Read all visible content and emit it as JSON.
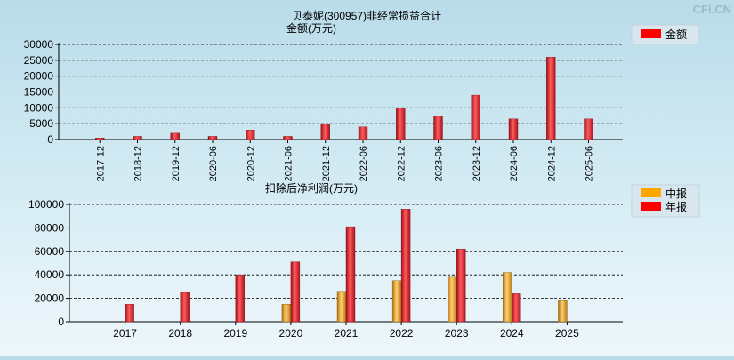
{
  "watermark": "CFi.CN",
  "chart_data": [
    {
      "type": "bar",
      "title": "贝泰妮(300957)非经常损益合计",
      "ylabel": "金额(万元)",
      "ylim": [
        0,
        30000
      ],
      "yticks": [
        0,
        5000,
        10000,
        15000,
        20000,
        25000,
        30000
      ],
      "categories": [
        "2017-12",
        "2018-12",
        "2019-12",
        "2020-06",
        "2020-12",
        "2021-06",
        "2021-12",
        "2022-06",
        "2022-12",
        "2023-06",
        "2023-12",
        "2024-06",
        "2024-12",
        "2025-06"
      ],
      "series": [
        {
          "name": "金额",
          "color": "#e8202a",
          "values": [
            500,
            1000,
            2000,
            1000,
            3000,
            1000,
            5000,
            4000,
            10000,
            7500,
            14000,
            6500,
            26000,
            6500
          ]
        }
      ],
      "legend": "top-right",
      "grid": true
    },
    {
      "type": "bar",
      "title": "扣除后净利润(万元)",
      "ylabel": "",
      "ylim": [
        0,
        100000
      ],
      "yticks": [
        0,
        20000,
        40000,
        60000,
        80000,
        100000
      ],
      "categories": [
        "2017",
        "2018",
        "2019",
        "2020",
        "2021",
        "2022",
        "2023",
        "2024",
        "2025"
      ],
      "series": [
        {
          "name": "中报",
          "color": "#f5a623",
          "values": [
            null,
            null,
            null,
            15000,
            26000,
            35000,
            38000,
            42000,
            18000
          ]
        },
        {
          "name": "年报",
          "color": "#e8202a",
          "values": [
            15000,
            25000,
            40000,
            51000,
            81000,
            96000,
            62000,
            24000,
            null
          ]
        }
      ],
      "legend": "top-right",
      "grid": true
    }
  ]
}
